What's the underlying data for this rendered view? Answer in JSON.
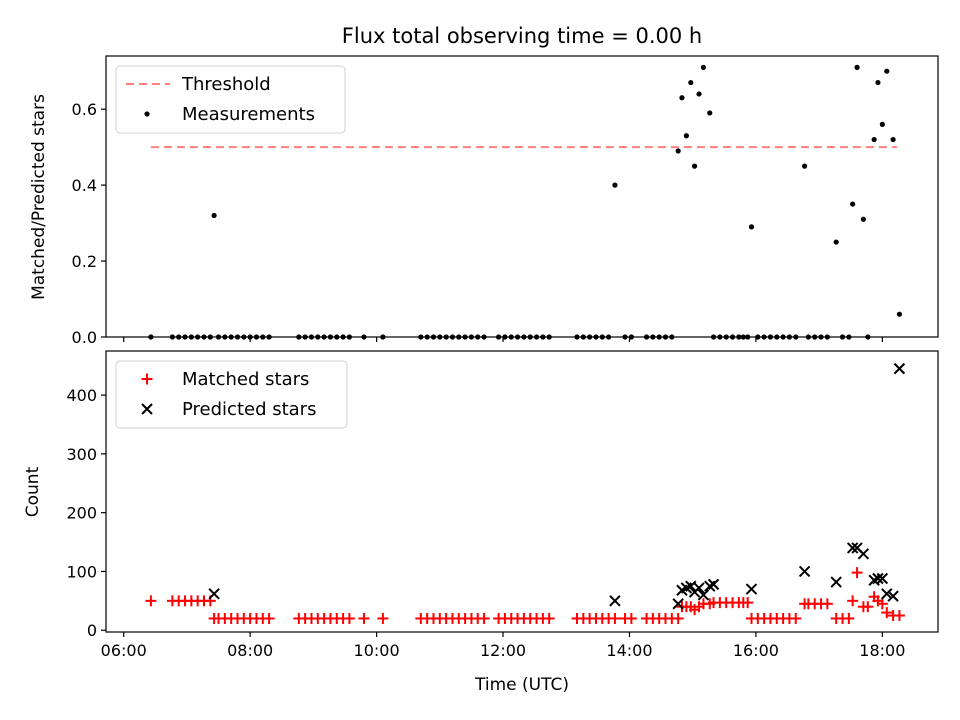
{
  "chart_data": [
    {
      "type": "scatter",
      "title": "Flux total observing time = 0.00 h",
      "ylabel": "Matched/Predicted stars",
      "xlabel": "",
      "xlim": [
        5.72,
        18.88
      ],
      "ylim": [
        0,
        0.74
      ],
      "yticks": [
        0,
        0.2,
        0.4,
        0.6
      ],
      "ytick_labels": [
        "0.0",
        "0.2",
        "0.4",
        "0.6"
      ],
      "legend": "top-left",
      "threshold": {
        "name": "Threshold",
        "y": 0.5,
        "x_start": 6.43,
        "x_end": 18.23,
        "color": "#ff7f7f",
        "style": "dashed"
      },
      "series": [
        {
          "name": "Measurements",
          "color": "#000000",
          "marker": "dot",
          "x": [
            6.43,
            6.77,
            6.87,
            6.97,
            7.07,
            7.17,
            7.27,
            7.37,
            7.43,
            7.5,
            7.6,
            7.7,
            7.8,
            7.9,
            8.0,
            8.1,
            8.2,
            8.3,
            8.77,
            8.87,
            8.97,
            9.07,
            9.17,
            9.27,
            9.37,
            9.47,
            9.57,
            9.8,
            10.1,
            10.7,
            10.8,
            10.9,
            11.0,
            11.1,
            11.2,
            11.3,
            11.4,
            11.5,
            11.6,
            11.7,
            11.93,
            12.03,
            12.13,
            12.23,
            12.33,
            12.43,
            12.53,
            12.63,
            12.73,
            13.17,
            13.27,
            13.37,
            13.47,
            13.57,
            13.67,
            13.77,
            13.93,
            14.03,
            14.27,
            14.37,
            14.47,
            14.57,
            14.67,
            14.77,
            14.83,
            14.9,
            14.97,
            15.03,
            15.1,
            15.17,
            15.27,
            15.33,
            15.43,
            15.53,
            15.63,
            15.73,
            15.8,
            15.87,
            15.93,
            16.03,
            16.13,
            16.23,
            16.33,
            16.43,
            16.53,
            16.63,
            16.77,
            16.83,
            16.93,
            17.03,
            17.13,
            17.27,
            17.37,
            17.47,
            17.53,
            17.6,
            17.7,
            17.77,
            17.87,
            17.93,
            18.0,
            18.07,
            18.17,
            18.27
          ],
          "y": [
            0,
            0,
            0,
            0,
            0,
            0,
            0,
            0,
            0.32,
            0,
            0,
            0,
            0,
            0,
            0,
            0,
            0,
            0,
            0,
            0,
            0,
            0,
            0,
            0,
            0,
            0,
            0,
            0,
            0,
            0,
            0,
            0,
            0,
            0,
            0,
            0,
            0,
            0,
            0,
            0,
            0,
            0,
            0,
            0,
            0,
            0,
            0,
            0,
            0,
            0,
            0,
            0,
            0,
            0,
            0,
            0.4,
            0,
            0,
            0,
            0,
            0,
            0,
            0,
            0.49,
            0.63,
            0.53,
            0.67,
            0.45,
            0.64,
            0.71,
            0.59,
            0,
            0,
            0,
            0,
            0,
            0,
            0,
            0.29,
            0,
            0,
            0,
            0,
            0,
            0,
            0,
            0.45,
            0,
            0,
            0,
            0,
            0.25,
            0,
            0,
            0.35,
            0.71,
            0.31,
            0,
            0.52,
            0.67,
            0.56,
            0.7,
            0.52,
            0.06
          ]
        }
      ]
    },
    {
      "type": "scatter",
      "title": "",
      "xlabel": "Time (UTC)",
      "ylabel": "Count",
      "xlim": [
        5.72,
        18.88
      ],
      "ylim": [
        -3,
        475
      ],
      "xticks": [
        6,
        8,
        10,
        12,
        14,
        16,
        18
      ],
      "xtick_labels": [
        "06:00",
        "08:00",
        "10:00",
        "12:00",
        "14:00",
        "16:00",
        "18:00"
      ],
      "yticks": [
        0,
        100,
        200,
        300,
        400
      ],
      "ytick_labels": [
        "0",
        "100",
        "200",
        "300",
        "400"
      ],
      "legend": "top-left",
      "series": [
        {
          "name": "Matched stars",
          "color": "#ff0000",
          "marker": "plus",
          "x": [
            6.43,
            6.77,
            6.87,
            6.97,
            7.07,
            7.17,
            7.27,
            7.37,
            7.43,
            7.5,
            7.6,
            7.7,
            7.8,
            7.9,
            8.0,
            8.1,
            8.2,
            8.3,
            8.77,
            8.87,
            8.97,
            9.07,
            9.17,
            9.27,
            9.37,
            9.47,
            9.57,
            9.8,
            10.1,
            10.7,
            10.8,
            10.9,
            11.0,
            11.1,
            11.2,
            11.3,
            11.4,
            11.5,
            11.6,
            11.7,
            11.93,
            12.03,
            12.13,
            12.23,
            12.33,
            12.43,
            12.53,
            12.63,
            12.73,
            13.17,
            13.27,
            13.37,
            13.47,
            13.57,
            13.67,
            13.77,
            13.93,
            14.03,
            14.27,
            14.37,
            14.47,
            14.57,
            14.67,
            14.77,
            14.83,
            14.9,
            14.97,
            15.03,
            15.1,
            15.17,
            15.27,
            15.33,
            15.43,
            15.53,
            15.63,
            15.73,
            15.8,
            15.87,
            15.93,
            16.03,
            16.13,
            16.23,
            16.33,
            16.43,
            16.53,
            16.63,
            16.77,
            16.83,
            16.93,
            17.03,
            17.13,
            17.27,
            17.37,
            17.47,
            17.53,
            17.6,
            17.7,
            17.77,
            17.87,
            17.93,
            18.0,
            18.07,
            18.17,
            18.27
          ],
          "y": [
            50,
            50,
            50,
            50,
            50,
            50,
            50,
            50,
            20,
            20,
            20,
            20,
            20,
            20,
            20,
            20,
            20,
            20,
            20,
            20,
            20,
            20,
            20,
            20,
            20,
            20,
            20,
            20,
            20,
            20,
            20,
            20,
            20,
            20,
            20,
            20,
            20,
            20,
            20,
            20,
            20,
            20,
            20,
            20,
            20,
            20,
            20,
            20,
            20,
            20,
            20,
            20,
            20,
            20,
            20,
            20,
            20,
            20,
            20,
            20,
            20,
            20,
            20,
            20,
            40,
            40,
            40,
            35,
            40,
            45,
            45,
            47,
            47,
            47,
            47,
            47,
            47,
            47,
            20,
            20,
            20,
            20,
            20,
            20,
            20,
            20,
            45,
            45,
            45,
            45,
            45,
            20,
            20,
            20,
            50,
            98,
            40,
            40,
            57,
            50,
            45,
            30,
            25,
            25
          ]
        },
        {
          "name": "Predicted stars",
          "color": "#000000",
          "marker": "x",
          "x": [
            7.43,
            13.77,
            14.77,
            14.83,
            14.9,
            14.97,
            15.03,
            15.1,
            15.17,
            15.27,
            15.33,
            15.93,
            16.77,
            17.27,
            17.53,
            17.6,
            17.7,
            17.87,
            17.93,
            18.0,
            18.07,
            18.17,
            18.27
          ],
          "y": [
            62,
            50,
            45,
            68,
            72,
            75,
            65,
            72,
            60,
            75,
            78,
            70,
            100,
            82,
            140,
            140,
            130,
            85,
            88,
            88,
            62,
            58,
            445
          ]
        }
      ]
    }
  ]
}
